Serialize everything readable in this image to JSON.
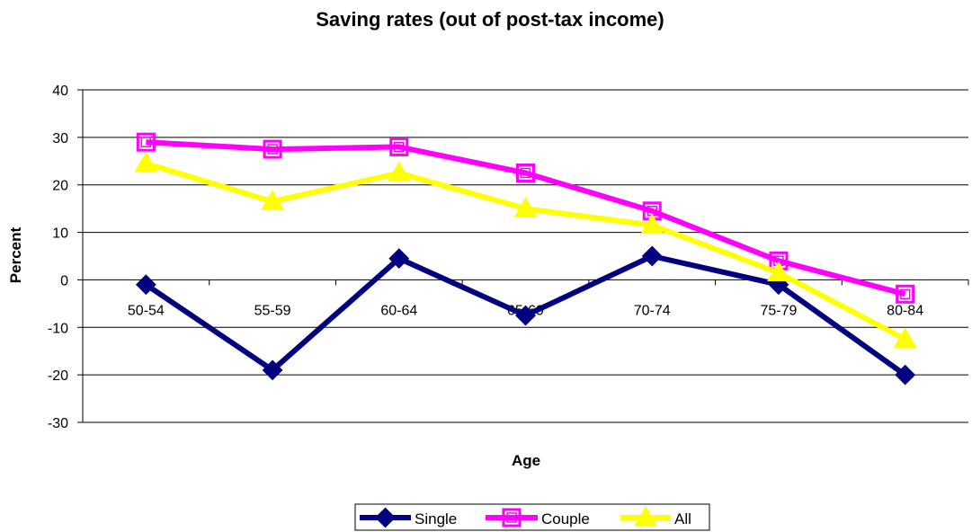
{
  "chart_data": {
    "type": "line",
    "title": "Saving rates (out of post-tax income)",
    "xlabel": "Age",
    "ylabel": "Percent",
    "categories": [
      "50-54",
      "55-59",
      "60-64",
      "65-69",
      "70-74",
      "75-79",
      "80-84"
    ],
    "ylim": [
      -30,
      40
    ],
    "yticks": [
      40,
      30,
      20,
      10,
      0,
      -10,
      -20,
      -30
    ],
    "grid": true,
    "legend": "bottom",
    "series": [
      {
        "name": "Single",
        "values": [
          -1,
          -19,
          4.5,
          -7.5,
          5,
          -1,
          -20
        ],
        "color": "#000080",
        "marker": "diamond"
      },
      {
        "name": "Couple",
        "values": [
          29,
          27.5,
          28,
          22.5,
          14.5,
          4,
          -3
        ],
        "color": "#FF00FF",
        "marker": "square"
      },
      {
        "name": "All",
        "values": [
          24.5,
          16.5,
          22.5,
          15,
          11.5,
          1.5,
          -12.5
        ],
        "color": "#FFFF00",
        "marker": "triangle"
      }
    ]
  }
}
